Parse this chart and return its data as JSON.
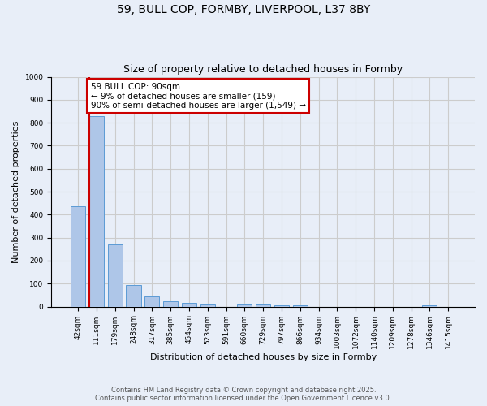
{
  "title1": "59, BULL COP, FORMBY, LIVERPOOL, L37 8BY",
  "title2": "Size of property relative to detached houses in Formby",
  "xlabel": "Distribution of detached houses by size in Formby",
  "ylabel": "Number of detached properties",
  "categories": [
    "42sqm",
    "111sqm",
    "179sqm",
    "248sqm",
    "317sqm",
    "385sqm",
    "454sqm",
    "523sqm",
    "591sqm",
    "660sqm",
    "729sqm",
    "797sqm",
    "866sqm",
    "934sqm",
    "1003sqm",
    "1072sqm",
    "1140sqm",
    "1209sqm",
    "1278sqm",
    "1346sqm",
    "1415sqm"
  ],
  "values": [
    435,
    830,
    270,
    95,
    45,
    22,
    15,
    10,
    0,
    10,
    10,
    5,
    5,
    0,
    0,
    0,
    0,
    0,
    0,
    7,
    0
  ],
  "bar_color": "#aec6e8",
  "bar_edge_color": "#5b9bd5",
  "red_line_x": 0.6,
  "annotation_text": "59 BULL COP: 90sqm\n← 9% of detached houses are smaller (159)\n90% of semi-detached houses are larger (1,549) →",
  "annotation_box_color": "#ffffff",
  "annotation_box_edge_color": "#cc0000",
  "red_line_color": "#cc0000",
  "ylim": [
    0,
    1000
  ],
  "yticks": [
    0,
    100,
    200,
    300,
    400,
    500,
    600,
    700,
    800,
    900,
    1000
  ],
  "grid_color": "#cccccc",
  "bg_color": "#e8eef8",
  "footer_line1": "Contains HM Land Registry data © Crown copyright and database right 2025.",
  "footer_line2": "Contains public sector information licensed under the Open Government Licence v3.0."
}
